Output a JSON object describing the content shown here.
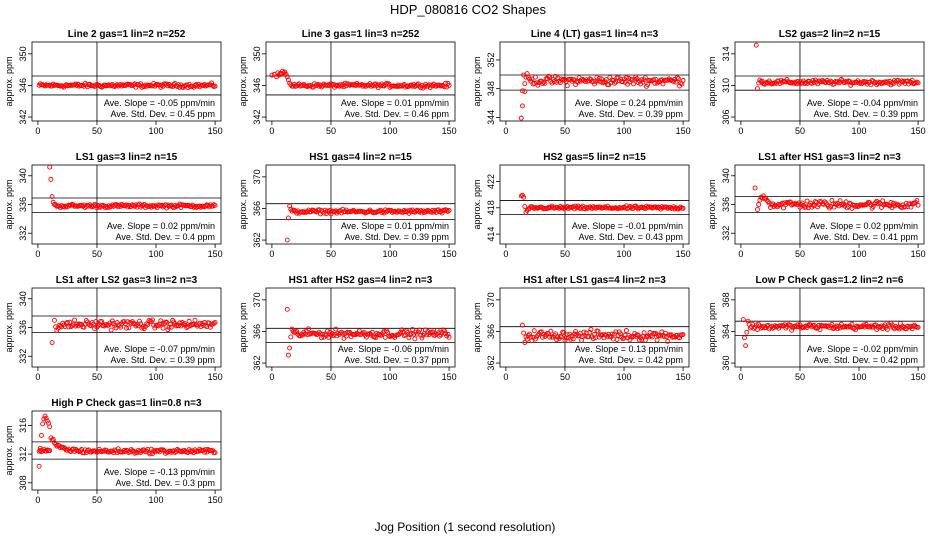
{
  "title": "HDP_080816  CO2 Shapes",
  "xlabel": "Jog Position (1 second resolution)",
  "colors": {
    "points": "#ff0000",
    "lines": "#000000",
    "background": "#ffffff"
  },
  "chart_data": [
    {
      "type": "scatter",
      "title": "Line 2 gas=1 lin=2 n=252",
      "ylabel": "approx. ppm",
      "xticks": [
        0,
        50,
        100,
        150
      ],
      "xlim": [
        -5,
        155
      ],
      "yticks": [
        342,
        346,
        350
      ],
      "ylim": [
        341.5,
        351.5
      ],
      "hlines": [
        347.2,
        344.8
      ],
      "vline": 50,
      "slope": "Ave. Slope = -0.05  ppm/min",
      "stddev": "Ave. Std. Dev. = 0.45  ppm",
      "series": {
        "x_start": 1,
        "x_end": 150,
        "x_step": 1,
        "base": 346.0,
        "noise": 0.12,
        "early": []
      }
    },
    {
      "type": "scatter",
      "title": "Line 3 gas=1 lin=3 n=252",
      "ylabel": "approx. ppm",
      "xticks": [
        0,
        50,
        100,
        150
      ],
      "xlim": [
        -5,
        155
      ],
      "yticks": [
        342,
        346,
        350
      ],
      "ylim": [
        341.5,
        351.5
      ],
      "hlines": [
        347.2,
        344.8
      ],
      "vline": 50,
      "slope": "Ave. Slope = 0.01  ppm/min",
      "stddev": "Ave. Std. Dev. = 0.46  ppm",
      "series": {
        "x_start": 17,
        "x_end": 150,
        "x_step": 1,
        "base": 346.0,
        "noise": 0.12,
        "early": [
          [
            0,
            347.3
          ],
          [
            2,
            347.4
          ],
          [
            4,
            347.1
          ],
          [
            5,
            347.6
          ],
          [
            6,
            347.3
          ],
          [
            7,
            347.5
          ],
          [
            8,
            347.5
          ],
          [
            9,
            347.8
          ],
          [
            10,
            347.6
          ],
          [
            11,
            347.7
          ],
          [
            12,
            347.4
          ],
          [
            13,
            347.1
          ],
          [
            14,
            346.7
          ],
          [
            15,
            346.3
          ],
          [
            16,
            346.1
          ]
        ]
      }
    },
    {
      "type": "scatter",
      "title": "Line 4 (LT) gas=1 lin=4 n=3",
      "ylabel": "approx. ppm",
      "xticks": [
        0,
        50,
        100,
        150
      ],
      "xlim": [
        -5,
        155
      ],
      "yticks": [
        344,
        348,
        352
      ],
      "ylim": [
        343.5,
        354.5
      ],
      "hlines": [
        349.9,
        347.8
      ],
      "vline": 50,
      "slope": "Ave. Slope = 0.24  ppm/min",
      "stddev": "Ave. Std. Dev. = 0.39  ppm",
      "series": {
        "x_start": 20,
        "x_end": 150,
        "x_step": 1,
        "base": 349.1,
        "noise": 0.3,
        "early": [
          [
            13,
            343.9
          ],
          [
            14,
            345.6
          ],
          [
            14,
            347.7
          ],
          [
            15,
            349.9
          ],
          [
            16,
            348.7
          ],
          [
            16,
            347.6
          ],
          [
            17,
            349.6
          ],
          [
            18,
            350.1
          ],
          [
            19,
            349.6
          ]
        ]
      }
    },
    {
      "type": "scatter",
      "title": "LS2 gas=2 lin=2 n=15",
      "ylabel": "approx. ppm",
      "xticks": [
        0,
        50,
        100,
        150
      ],
      "xlim": [
        -5,
        155
      ],
      "yticks": [
        306,
        310,
        314
      ],
      "ylim": [
        305.5,
        315.5
      ],
      "hlines": [
        311.2,
        309.4
      ],
      "vline": 50,
      "slope": "Ave. Slope = -0.04  ppm/min",
      "stddev": "Ave. Std. Dev. = 0.39  ppm",
      "series": {
        "x_start": 18,
        "x_end": 150,
        "x_step": 1,
        "base": 310.4,
        "noise": 0.15,
        "early": [
          [
            13,
            315.1
          ],
          [
            14,
            309.6
          ],
          [
            15,
            310.3
          ],
          [
            16,
            310.7
          ],
          [
            17,
            310.5
          ]
        ]
      }
    },
    {
      "type": "scatter",
      "title": "LS1 gas=3 lin=2 n=15",
      "ylabel": "approx. ppm",
      "xticks": [
        0,
        50,
        100,
        150
      ],
      "xlim": [
        -5,
        155
      ],
      "yticks": [
        332,
        336,
        340
      ],
      "ylim": [
        330.5,
        341.5
      ],
      "hlines": [
        336.9,
        334.9
      ],
      "vline": 50,
      "slope": "Ave. Slope = 0.02  ppm/min",
      "stddev": "Ave. Std. Dev. = 0.4  ppm",
      "series": {
        "x_start": 15,
        "x_end": 150,
        "x_step": 1,
        "base": 335.8,
        "noise": 0.12,
        "early": [
          [
            10,
            341.2
          ],
          [
            11,
            339.5
          ],
          [
            12,
            337.1
          ],
          [
            13,
            336.3
          ],
          [
            14,
            336.0
          ]
        ]
      }
    },
    {
      "type": "scatter",
      "title": "HS1 gas=4 lin=2 n=15",
      "ylabel": "approx. ppm",
      "xticks": [
        0,
        50,
        100,
        150
      ],
      "xlim": [
        -5,
        155
      ],
      "yticks": [
        362,
        366,
        370
      ],
      "ylim": [
        361.5,
        371.5
      ],
      "hlines": [
        366.6,
        364.6
      ],
      "vline": 50,
      "slope": "Ave. Slope = 0.01  ppm/min",
      "stddev": "Ave. Std. Dev. = 0.39  ppm",
      "series": {
        "x_start": 17,
        "x_end": 150,
        "x_step": 1,
        "base": 365.6,
        "noise": 0.12,
        "early": [
          [
            13,
            362.0
          ],
          [
            14,
            364.8
          ],
          [
            15,
            366.3
          ],
          [
            16,
            365.9
          ]
        ]
      }
    },
    {
      "type": "scatter",
      "title": "HS2 gas=5 lin=2 n=15",
      "ylabel": "approx. ppm",
      "xticks": [
        0,
        50,
        100,
        150
      ],
      "xlim": [
        -5,
        155
      ],
      "yticks": [
        414,
        418,
        422
      ],
      "ylim": [
        412.5,
        424.5
      ],
      "hlines": [
        419.1,
        417.0
      ],
      "vline": 50,
      "slope": "Ave. Slope = -0.01  ppm/min",
      "stddev": "Ave. Std. Dev. = 0.43  ppm",
      "series": {
        "x_start": 20,
        "x_end": 150,
        "x_step": 1,
        "base": 418.0,
        "noise": 0.12,
        "early": [
          [
            13,
            419.8
          ],
          [
            14,
            419.9
          ],
          [
            15,
            419.6
          ],
          [
            16,
            418.2
          ],
          [
            17,
            417.3
          ],
          [
            18,
            417.6
          ],
          [
            19,
            417.8
          ]
        ]
      }
    },
    {
      "type": "scatter",
      "title": "LS1 after HS1 gas=3 lin=2 n=3",
      "ylabel": "approx. ppm",
      "xticks": [
        0,
        50,
        100,
        150
      ],
      "xlim": [
        -5,
        155
      ],
      "yticks": [
        332,
        336,
        340
      ],
      "ylim": [
        330.5,
        341.5
      ],
      "hlines": [
        337.1,
        334.9
      ],
      "vline": 50,
      "slope": "Ave. Slope = 0.02  ppm/min",
      "stddev": "Ave. Std. Dev. = 0.41  ppm",
      "series": {
        "x_start": 25,
        "x_end": 150,
        "x_step": 1,
        "base": 336.0,
        "noise": 0.28,
        "early": [
          [
            12,
            338.3
          ],
          [
            14,
            335.3
          ],
          [
            15,
            336.0
          ],
          [
            16,
            336.6
          ],
          [
            17,
            337.0
          ],
          [
            18,
            336.9
          ],
          [
            19,
            337.2
          ],
          [
            20,
            336.8
          ],
          [
            21,
            336.9
          ],
          [
            22,
            336.6
          ],
          [
            23,
            336.4
          ],
          [
            24,
            336.2
          ]
        ]
      }
    },
    {
      "type": "scatter",
      "title": "LS1 after LS2 gas=3 lin=2 n=3",
      "ylabel": "approx. ppm",
      "xticks": [
        0,
        50,
        100,
        150
      ],
      "xlim": [
        -5,
        155
      ],
      "yticks": [
        332,
        336,
        340
      ],
      "ylim": [
        330.5,
        341.5
      ],
      "hlines": [
        337.6,
        335.3
      ],
      "vline": 50,
      "slope": "Ave. Slope = -0.07  ppm/min",
      "stddev": "Ave. Std. Dev. = 0.39  ppm",
      "series": {
        "x_start": 19,
        "x_end": 150,
        "x_step": 1,
        "base": 336.4,
        "noise": 0.3,
        "early": [
          [
            12,
            333.9
          ],
          [
            14,
            337.0
          ],
          [
            15,
            336.1
          ],
          [
            16,
            335.6
          ],
          [
            17,
            335.9
          ],
          [
            18,
            336.3
          ]
        ]
      }
    },
    {
      "type": "scatter",
      "title": "HS1 after HS2 gas=4 lin=2 n=3",
      "ylabel": "approx. ppm",
      "xticks": [
        0,
        50,
        100,
        150
      ],
      "xlim": [
        -5,
        155
      ],
      "yticks": [
        362,
        366,
        370
      ],
      "ylim": [
        361.5,
        371.5
      ],
      "hlines": [
        366.4,
        364.6
      ],
      "vline": 50,
      "slope": "Ave. Slope = -0.06  ppm/min",
      "stddev": "Ave. Std. Dev. = 0.37  ppm",
      "series": {
        "x_start": 19,
        "x_end": 150,
        "x_step": 1,
        "base": 365.7,
        "noise": 0.25,
        "early": [
          [
            13,
            368.8
          ],
          [
            14,
            363.0
          ],
          [
            15,
            363.9
          ],
          [
            16,
            365.3
          ],
          [
            17,
            366.3
          ],
          [
            18,
            366.0
          ]
        ]
      }
    },
    {
      "type": "scatter",
      "title": "HS1 after LS1 gas=4 lin=2 n=3",
      "ylabel": "approx. ppm",
      "xticks": [
        0,
        50,
        100,
        150
      ],
      "xlim": [
        -5,
        155
      ],
      "yticks": [
        362,
        366,
        370
      ],
      "ylim": [
        361.5,
        371.5
      ],
      "hlines": [
        366.6,
        364.6
      ],
      "vline": 50,
      "slope": "Ave. Slope = 0.13  ppm/min",
      "stddev": "Ave. Std. Dev. = 0.42  ppm",
      "series": {
        "x_start": 19,
        "x_end": 150,
        "x_step": 1,
        "base": 365.5,
        "noise": 0.3,
        "early": [
          [
            14,
            366.8
          ],
          [
            15,
            365.8
          ],
          [
            16,
            364.6
          ],
          [
            17,
            365.3
          ],
          [
            18,
            365.0
          ]
        ]
      }
    },
    {
      "type": "scatter",
      "title": "Low P Check gas=1.2 lin=2 n=6",
      "ylabel": "approx. ppm",
      "xticks": [
        0,
        50,
        100,
        150
      ],
      "xlim": [
        -5,
        155
      ],
      "yticks": [
        360,
        364,
        368
      ],
      "ylim": [
        359.5,
        369.5
      ],
      "hlines": [
        365.3,
        363.5
      ],
      "vline": 50,
      "slope": "Ave. Slope = -0.02  ppm/min",
      "stddev": "Ave. Std. Dev. = 0.42  ppm",
      "series": {
        "x_start": 8,
        "x_end": 150,
        "x_step": 1,
        "base": 364.6,
        "noise": 0.18,
        "early": [
          [
            2,
            365.5
          ],
          [
            3,
            363.2
          ],
          [
            4,
            362.2
          ],
          [
            5,
            363.9
          ],
          [
            6,
            365.3
          ],
          [
            7,
            364.9
          ]
        ]
      }
    },
    {
      "type": "scatter",
      "title": "High P Check gas=1 lin=0.8 n=3",
      "ylabel": "approx. ppm",
      "xticks": [
        0,
        50,
        100,
        150
      ],
      "xlim": [
        -5,
        155
      ],
      "yticks": [
        308,
        312,
        316
      ],
      "ylim": [
        307,
        318
      ],
      "hlines": [
        313.7,
        311.3
      ],
      "vline": 50,
      "slope": "Ave. Slope = -0.13  ppm/min",
      "stddev": "Ave. Std. Dev. = 0.3  ppm",
      "series": {
        "x_start": 1,
        "x_end": 150,
        "x_step": 1,
        "base": 312.4,
        "noise": 0.15,
        "decay_peak": 317.3,
        "decay_peak_x": 8,
        "decay_tau": 7,
        "early": [
          [
            1,
            310.3
          ],
          [
            2,
            312.8
          ],
          [
            3,
            314.6
          ],
          [
            4,
            316.2
          ],
          [
            5,
            316.9
          ],
          [
            6,
            317.3
          ],
          [
            7,
            317.0
          ],
          [
            8,
            316.6
          ],
          [
            9,
            316.3
          ],
          [
            10,
            315.8
          ]
        ]
      }
    }
  ]
}
